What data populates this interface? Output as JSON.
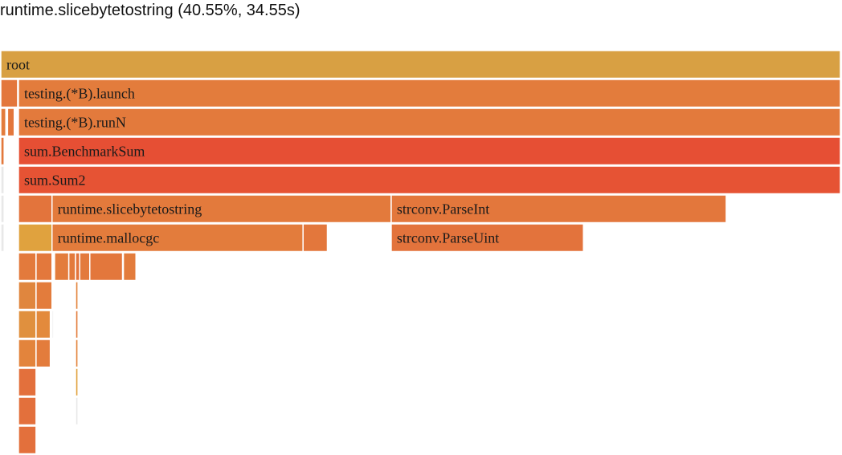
{
  "hover_info": "runtime.slicebytetostring (40.55%, 34.55s)",
  "frames": [
    {
      "row": 0,
      "start": 0.0,
      "end": 1.0,
      "label": "root",
      "color": "#d8a043"
    },
    {
      "row": 1,
      "start": 0.0,
      "end": 0.02,
      "label": "",
      "color": "#e3773c"
    },
    {
      "row": 1,
      "start": 0.021,
      "end": 1.0,
      "label": "testing.(*B).launch",
      "color": "#e37c3c"
    },
    {
      "row": 2,
      "start": 0.0,
      "end": 0.006,
      "label": "",
      "color": "#e37c3c"
    },
    {
      "row": 2,
      "start": 0.008,
      "end": 0.016,
      "label": "",
      "color": "#e3773c"
    },
    {
      "row": 2,
      "start": 0.021,
      "end": 1.0,
      "label": "testing.(*B).runN",
      "color": "#e37a3c"
    },
    {
      "row": 3,
      "start": 0.0,
      "end": 0.004,
      "label": "",
      "color": "#e3783c"
    },
    {
      "row": 3,
      "start": 0.021,
      "end": 1.0,
      "label": "sum.BenchmarkSum",
      "color": "#e64f34"
    },
    {
      "row": 4,
      "start": 0.0,
      "end": 0.004,
      "label": "",
      "color": "#e8e8e8"
    },
    {
      "row": 4,
      "start": 0.021,
      "end": 1.0,
      "label": "sum.Sum2",
      "color": "#e65334"
    },
    {
      "row": 5,
      "start": 0.0,
      "end": 0.004,
      "label": "",
      "color": "#e8e8e8"
    },
    {
      "row": 5,
      "start": 0.021,
      "end": 0.061,
      "label": "",
      "color": "#e3743c"
    },
    {
      "row": 5,
      "start": 0.061,
      "end": 0.465,
      "label": "runtime.slicebytetostring",
      "color": "#e37a3c"
    },
    {
      "row": 5,
      "start": 0.465,
      "end": 0.864,
      "label": "strconv.ParseInt",
      "color": "#e3773c"
    },
    {
      "row": 6,
      "start": 0.0,
      "end": 0.004,
      "label": "",
      "color": "#e8e8e8"
    },
    {
      "row": 6,
      "start": 0.021,
      "end": 0.061,
      "label": "",
      "color": "#e0a23e"
    },
    {
      "row": 6,
      "start": 0.061,
      "end": 0.36,
      "label": "runtime.mallocgc",
      "color": "#e37c3c"
    },
    {
      "row": 6,
      "start": 0.36,
      "end": 0.389,
      "label": "",
      "color": "#e3773c"
    },
    {
      "row": 6,
      "start": 0.465,
      "end": 0.694,
      "label": "strconv.ParseUint",
      "color": "#e3733c"
    },
    {
      "row": 7,
      "start": 0.021,
      "end": 0.042,
      "label": "",
      "color": "#e37a3c"
    },
    {
      "row": 7,
      "start": 0.042,
      "end": 0.061,
      "label": "",
      "color": "#e3783c"
    },
    {
      "row": 7,
      "start": 0.064,
      "end": 0.081,
      "label": "",
      "color": "#e37c3c"
    },
    {
      "row": 7,
      "start": 0.081,
      "end": 0.089,
      "label": "",
      "color": "#e37a3c"
    },
    {
      "row": 7,
      "start": 0.089,
      "end": 0.094,
      "label": "",
      "color": "#e3743c"
    },
    {
      "row": 7,
      "start": 0.094,
      "end": 0.106,
      "label": "",
      "color": "#e37a3c"
    },
    {
      "row": 7,
      "start": 0.106,
      "end": 0.145,
      "label": "",
      "color": "#e3773c"
    },
    {
      "row": 7,
      "start": 0.146,
      "end": 0.161,
      "label": "",
      "color": "#e37c3c"
    },
    {
      "row": 8,
      "start": 0.021,
      "end": 0.042,
      "label": "",
      "color": "#e0863e"
    },
    {
      "row": 8,
      "start": 0.042,
      "end": 0.061,
      "label": "",
      "color": "#e37c3c"
    },
    {
      "row": 8,
      "start": 0.089,
      "end": 0.092,
      "label": "",
      "color": "#e3843c"
    },
    {
      "row": 9,
      "start": 0.021,
      "end": 0.042,
      "label": "",
      "color": "#e0903e"
    },
    {
      "row": 9,
      "start": 0.042,
      "end": 0.059,
      "label": "",
      "color": "#e38a3c"
    },
    {
      "row": 9,
      "start": 0.061,
      "end": 0.063,
      "label": "",
      "color": "#e8e8e8"
    },
    {
      "row": 9,
      "start": 0.089,
      "end": 0.092,
      "label": "",
      "color": "#e37c3c"
    },
    {
      "row": 10,
      "start": 0.021,
      "end": 0.042,
      "label": "",
      "color": "#e3843c"
    },
    {
      "row": 10,
      "start": 0.042,
      "end": 0.059,
      "label": "",
      "color": "#e37c3c"
    },
    {
      "row": 10,
      "start": 0.089,
      "end": 0.092,
      "label": "",
      "color": "#e3843c"
    },
    {
      "row": 11,
      "start": 0.021,
      "end": 0.042,
      "label": "",
      "color": "#e3703c"
    },
    {
      "row": 11,
      "start": 0.089,
      "end": 0.092,
      "label": "",
      "color": "#e0a23e"
    },
    {
      "row": 12,
      "start": 0.021,
      "end": 0.042,
      "label": "",
      "color": "#e3703c"
    },
    {
      "row": 12,
      "start": 0.089,
      "end": 0.092,
      "label": "",
      "color": "#e8e8e8"
    },
    {
      "row": 13,
      "start": 0.021,
      "end": 0.042,
      "label": "",
      "color": "#e3703c"
    }
  ]
}
